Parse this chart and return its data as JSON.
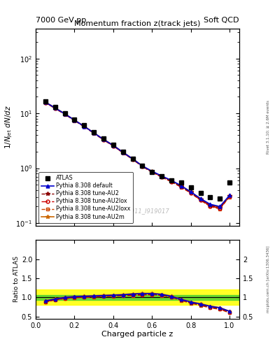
{
  "title_top_left": "7000 GeV pp",
  "title_top_right": "Soft QCD",
  "plot_title": "Momentum fraction z(track jets)",
  "xlabel": "Charged particle z",
  "ylabel_main": "1/N_{jet} dN/dz",
  "ylabel_ratio": "Ratio to ATLAS",
  "watermark": "ATLAS_2011_I919017",
  "rivet_label": "Rivet 3.1.10; ≥ 2.6M events",
  "mcplots_label": "mcplots.cern.ch [arXiv:1306.3436]",
  "z_values": [
    0.05,
    0.1,
    0.15,
    0.2,
    0.25,
    0.3,
    0.35,
    0.4,
    0.45,
    0.5,
    0.55,
    0.6,
    0.65,
    0.7,
    0.75,
    0.8,
    0.85,
    0.9,
    0.95,
    1.0
  ],
  "atlas_data": [
    16.5,
    13.0,
    10.0,
    7.8,
    6.0,
    4.6,
    3.5,
    2.7,
    2.0,
    1.5,
    1.1,
    0.85,
    0.72,
    0.6,
    0.55,
    0.45,
    0.35,
    0.3,
    0.28,
    0.55
  ],
  "pythia_default": [
    16.0,
    12.5,
    9.8,
    7.5,
    5.8,
    4.4,
    3.35,
    2.6,
    1.95,
    1.48,
    1.1,
    0.88,
    0.72,
    0.6,
    0.48,
    0.37,
    0.28,
    0.22,
    0.2,
    0.32
  ],
  "pythia_au2": [
    15.8,
    12.4,
    9.7,
    7.45,
    5.75,
    4.38,
    3.3,
    2.58,
    1.93,
    1.47,
    1.08,
    0.86,
    0.7,
    0.58,
    0.46,
    0.36,
    0.27,
    0.21,
    0.19,
    0.31
  ],
  "pythia_au2lox": [
    15.7,
    12.3,
    9.6,
    7.4,
    5.7,
    4.35,
    3.28,
    2.56,
    1.91,
    1.45,
    1.07,
    0.85,
    0.69,
    0.57,
    0.455,
    0.355,
    0.265,
    0.205,
    0.185,
    0.305
  ],
  "pythia_au2loxx": [
    15.6,
    12.2,
    9.55,
    7.35,
    5.68,
    4.32,
    3.26,
    2.54,
    1.89,
    1.44,
    1.065,
    0.845,
    0.685,
    0.565,
    0.45,
    0.35,
    0.26,
    0.2,
    0.18,
    0.3
  ],
  "pythia_au2m": [
    16.1,
    12.6,
    9.85,
    7.55,
    5.82,
    4.42,
    3.36,
    2.62,
    1.96,
    1.49,
    1.1,
    0.87,
    0.71,
    0.59,
    0.47,
    0.37,
    0.275,
    0.21,
    0.195,
    0.31
  ],
  "ratio_default": [
    0.91,
    0.96,
    1.0,
    1.02,
    1.03,
    1.04,
    1.05,
    1.06,
    1.07,
    1.09,
    1.1,
    1.1,
    1.08,
    1.03,
    0.95,
    0.88,
    0.83,
    0.77,
    0.73,
    0.64
  ],
  "ratio_au2": [
    0.9,
    0.95,
    0.99,
    1.01,
    1.02,
    1.03,
    1.04,
    1.05,
    1.06,
    1.07,
    1.08,
    1.09,
    1.07,
    1.02,
    0.94,
    0.87,
    0.81,
    0.75,
    0.71,
    0.62
  ],
  "ratio_au2lox": [
    0.89,
    0.94,
    0.98,
    1.0,
    1.01,
    1.02,
    1.03,
    1.04,
    1.05,
    1.06,
    1.07,
    1.08,
    1.06,
    1.01,
    0.93,
    0.86,
    0.8,
    0.74,
    0.7,
    0.61
  ],
  "ratio_au2loxx": [
    0.88,
    0.93,
    0.97,
    0.99,
    1.0,
    1.01,
    1.02,
    1.03,
    1.04,
    1.05,
    1.06,
    1.07,
    1.05,
    1.0,
    0.92,
    0.85,
    0.79,
    0.73,
    0.69,
    0.6
  ],
  "ratio_au2m": [
    0.92,
    0.97,
    1.01,
    1.03,
    1.04,
    1.05,
    1.06,
    1.07,
    1.08,
    1.1,
    1.11,
    1.11,
    1.09,
    1.04,
    0.96,
    0.89,
    0.84,
    0.78,
    0.74,
    0.64
  ],
  "green_band_lo": 0.94,
  "green_band_hi": 1.06,
  "yellow_band_lo": 0.8,
  "yellow_band_hi": 1.2,
  "color_default": "#0000cc",
  "color_au2": "#8B0000",
  "color_au2lox": "#cc0000",
  "color_au2loxx": "#cc4400",
  "color_au2m": "#cc6600",
  "xlim": [
    0.0,
    1.05
  ],
  "ylim_main": [
    0.09,
    350
  ],
  "ylim_ratio": [
    0.45,
    2.5
  ]
}
